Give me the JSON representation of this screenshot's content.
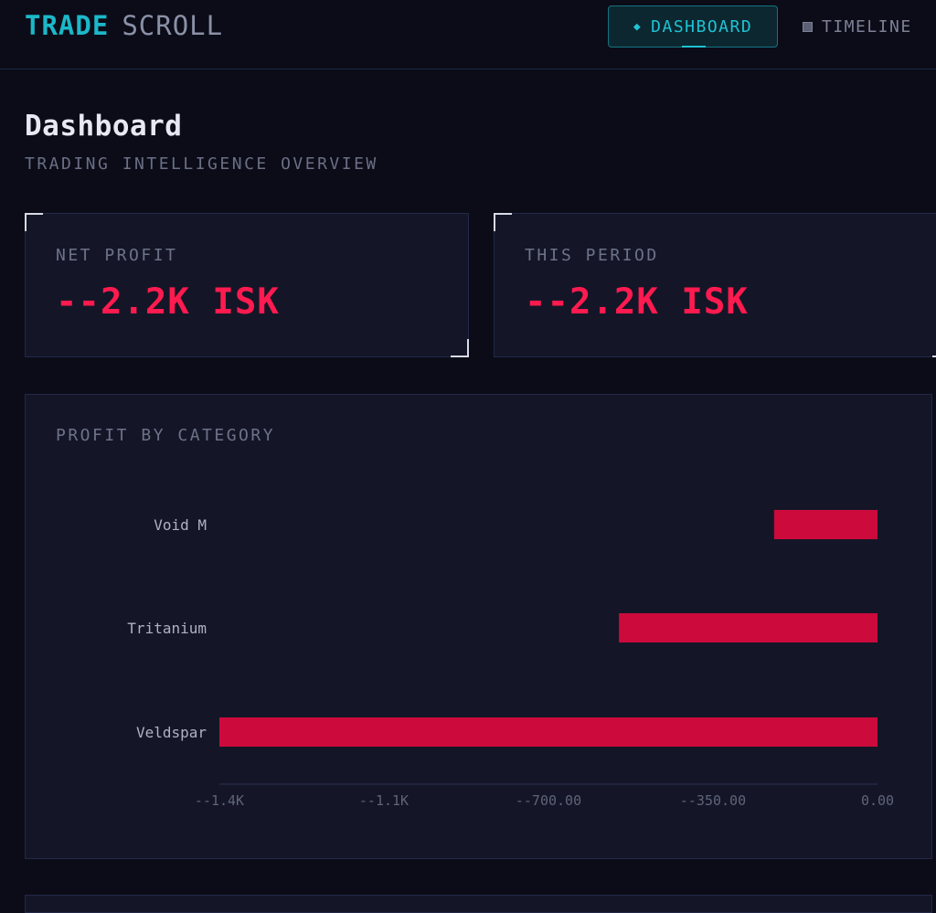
{
  "header": {
    "brand_strong": "TRADE",
    "brand_light": "SCROLL",
    "nav": [
      {
        "label": "DASHBOARD",
        "icon": "diamond-icon",
        "active": true
      },
      {
        "label": "TIMELINE",
        "icon": "grid-icon",
        "active": false
      }
    ]
  },
  "page": {
    "title": "Dashboard",
    "subtitle": "TRADING INTELLIGENCE OVERVIEW"
  },
  "stats": [
    {
      "label": "NET PROFIT",
      "value": "--2.2K ISK"
    },
    {
      "label": "THIS PERIOD",
      "value": "--2.2K ISK"
    }
  ],
  "chart": {
    "title": "PROFIT BY CATEGORY"
  },
  "colors": {
    "accent": "#1bb8c9",
    "negative": "#cc0a3b"
  },
  "chart_data": {
    "type": "bar",
    "orientation": "horizontal",
    "categories": [
      "Void M",
      "Tritanium",
      "Veldspar"
    ],
    "values": [
      -220,
      -550,
      -1400
    ],
    "xlim": [
      -1400,
      0
    ],
    "x_ticks": [
      -1400,
      -1050,
      -700,
      -350,
      0
    ],
    "x_tick_labels": [
      "--1.4K",
      "--1.1K",
      "--700.00",
      "--350.00",
      "0.00"
    ],
    "grid": false,
    "legend": "none"
  }
}
